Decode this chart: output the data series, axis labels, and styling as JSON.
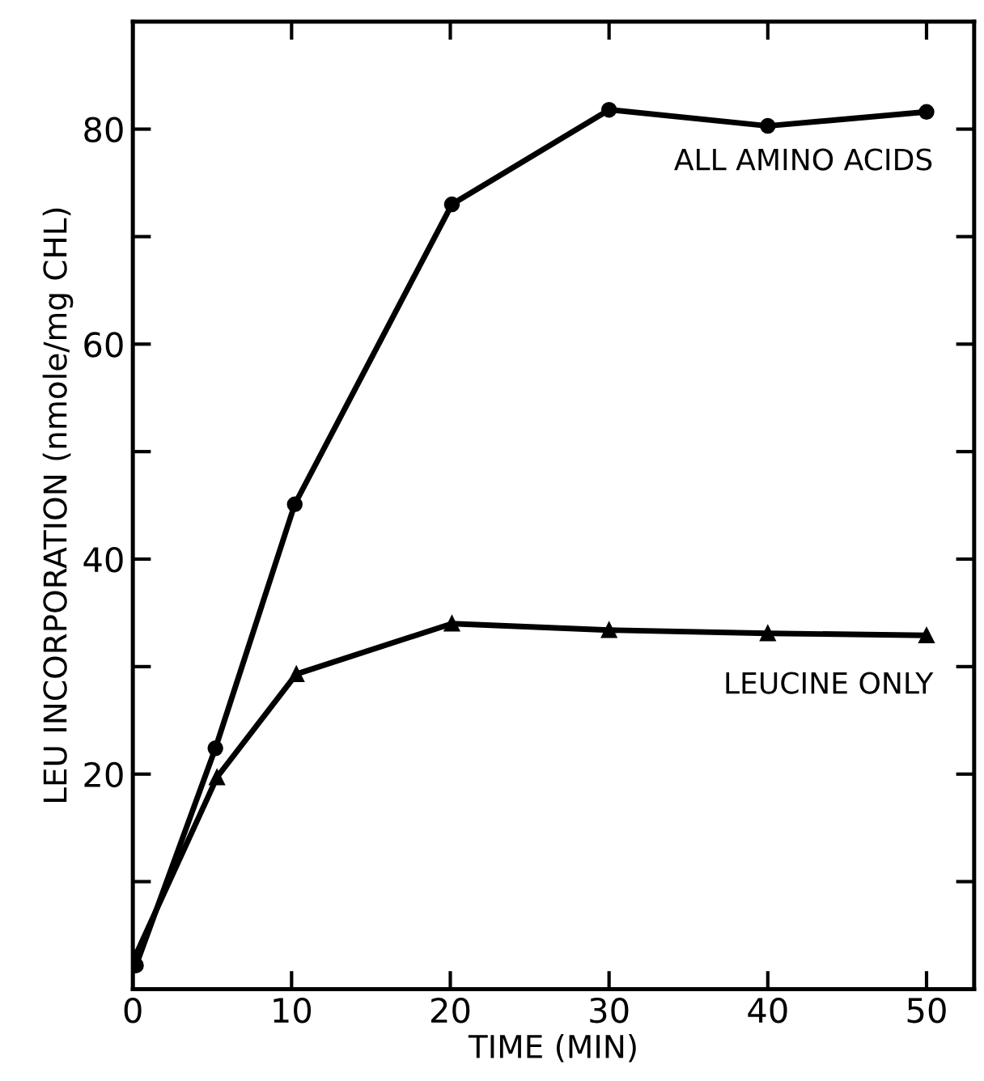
{
  "chart_data": {
    "type": "line",
    "xlabel": "TIME (MIN)",
    "ylabel": "LEU INCORPORATION (nmole/mg CHL)",
    "xlim": [
      0,
      53
    ],
    "ylim": [
      0,
      90
    ],
    "xticks": [
      0,
      10,
      20,
      30,
      40,
      50
    ],
    "yticks": [
      {
        "value": 10,
        "label": null
      },
      20,
      {
        "value": 30,
        "label": null
      },
      40,
      {
        "value": 50,
        "label": null
      },
      60,
      {
        "value": 70,
        "label": null
      },
      80
    ],
    "grid": false,
    "legend": "right",
    "series": [
      {
        "name": "ALL AMINO ACIDS",
        "color": "#000000",
        "marker": "circle",
        "x": [
          0.2,
          5.2,
          10.2,
          20.1,
          30,
          40,
          50
        ],
        "values": [
          2.2,
          22.4,
          45.1,
          73.0,
          81.8,
          80.3,
          81.6
        ]
      },
      {
        "name": "LEUCINE ONLY",
        "color": "#000000",
        "marker": "triangle",
        "x": [
          0.1,
          5.3,
          10.3,
          20.1,
          30,
          40,
          50
        ],
        "values": [
          2.9,
          19.7,
          29.3,
          34.0,
          33.4,
          33.1,
          32.9
        ]
      }
    ]
  }
}
